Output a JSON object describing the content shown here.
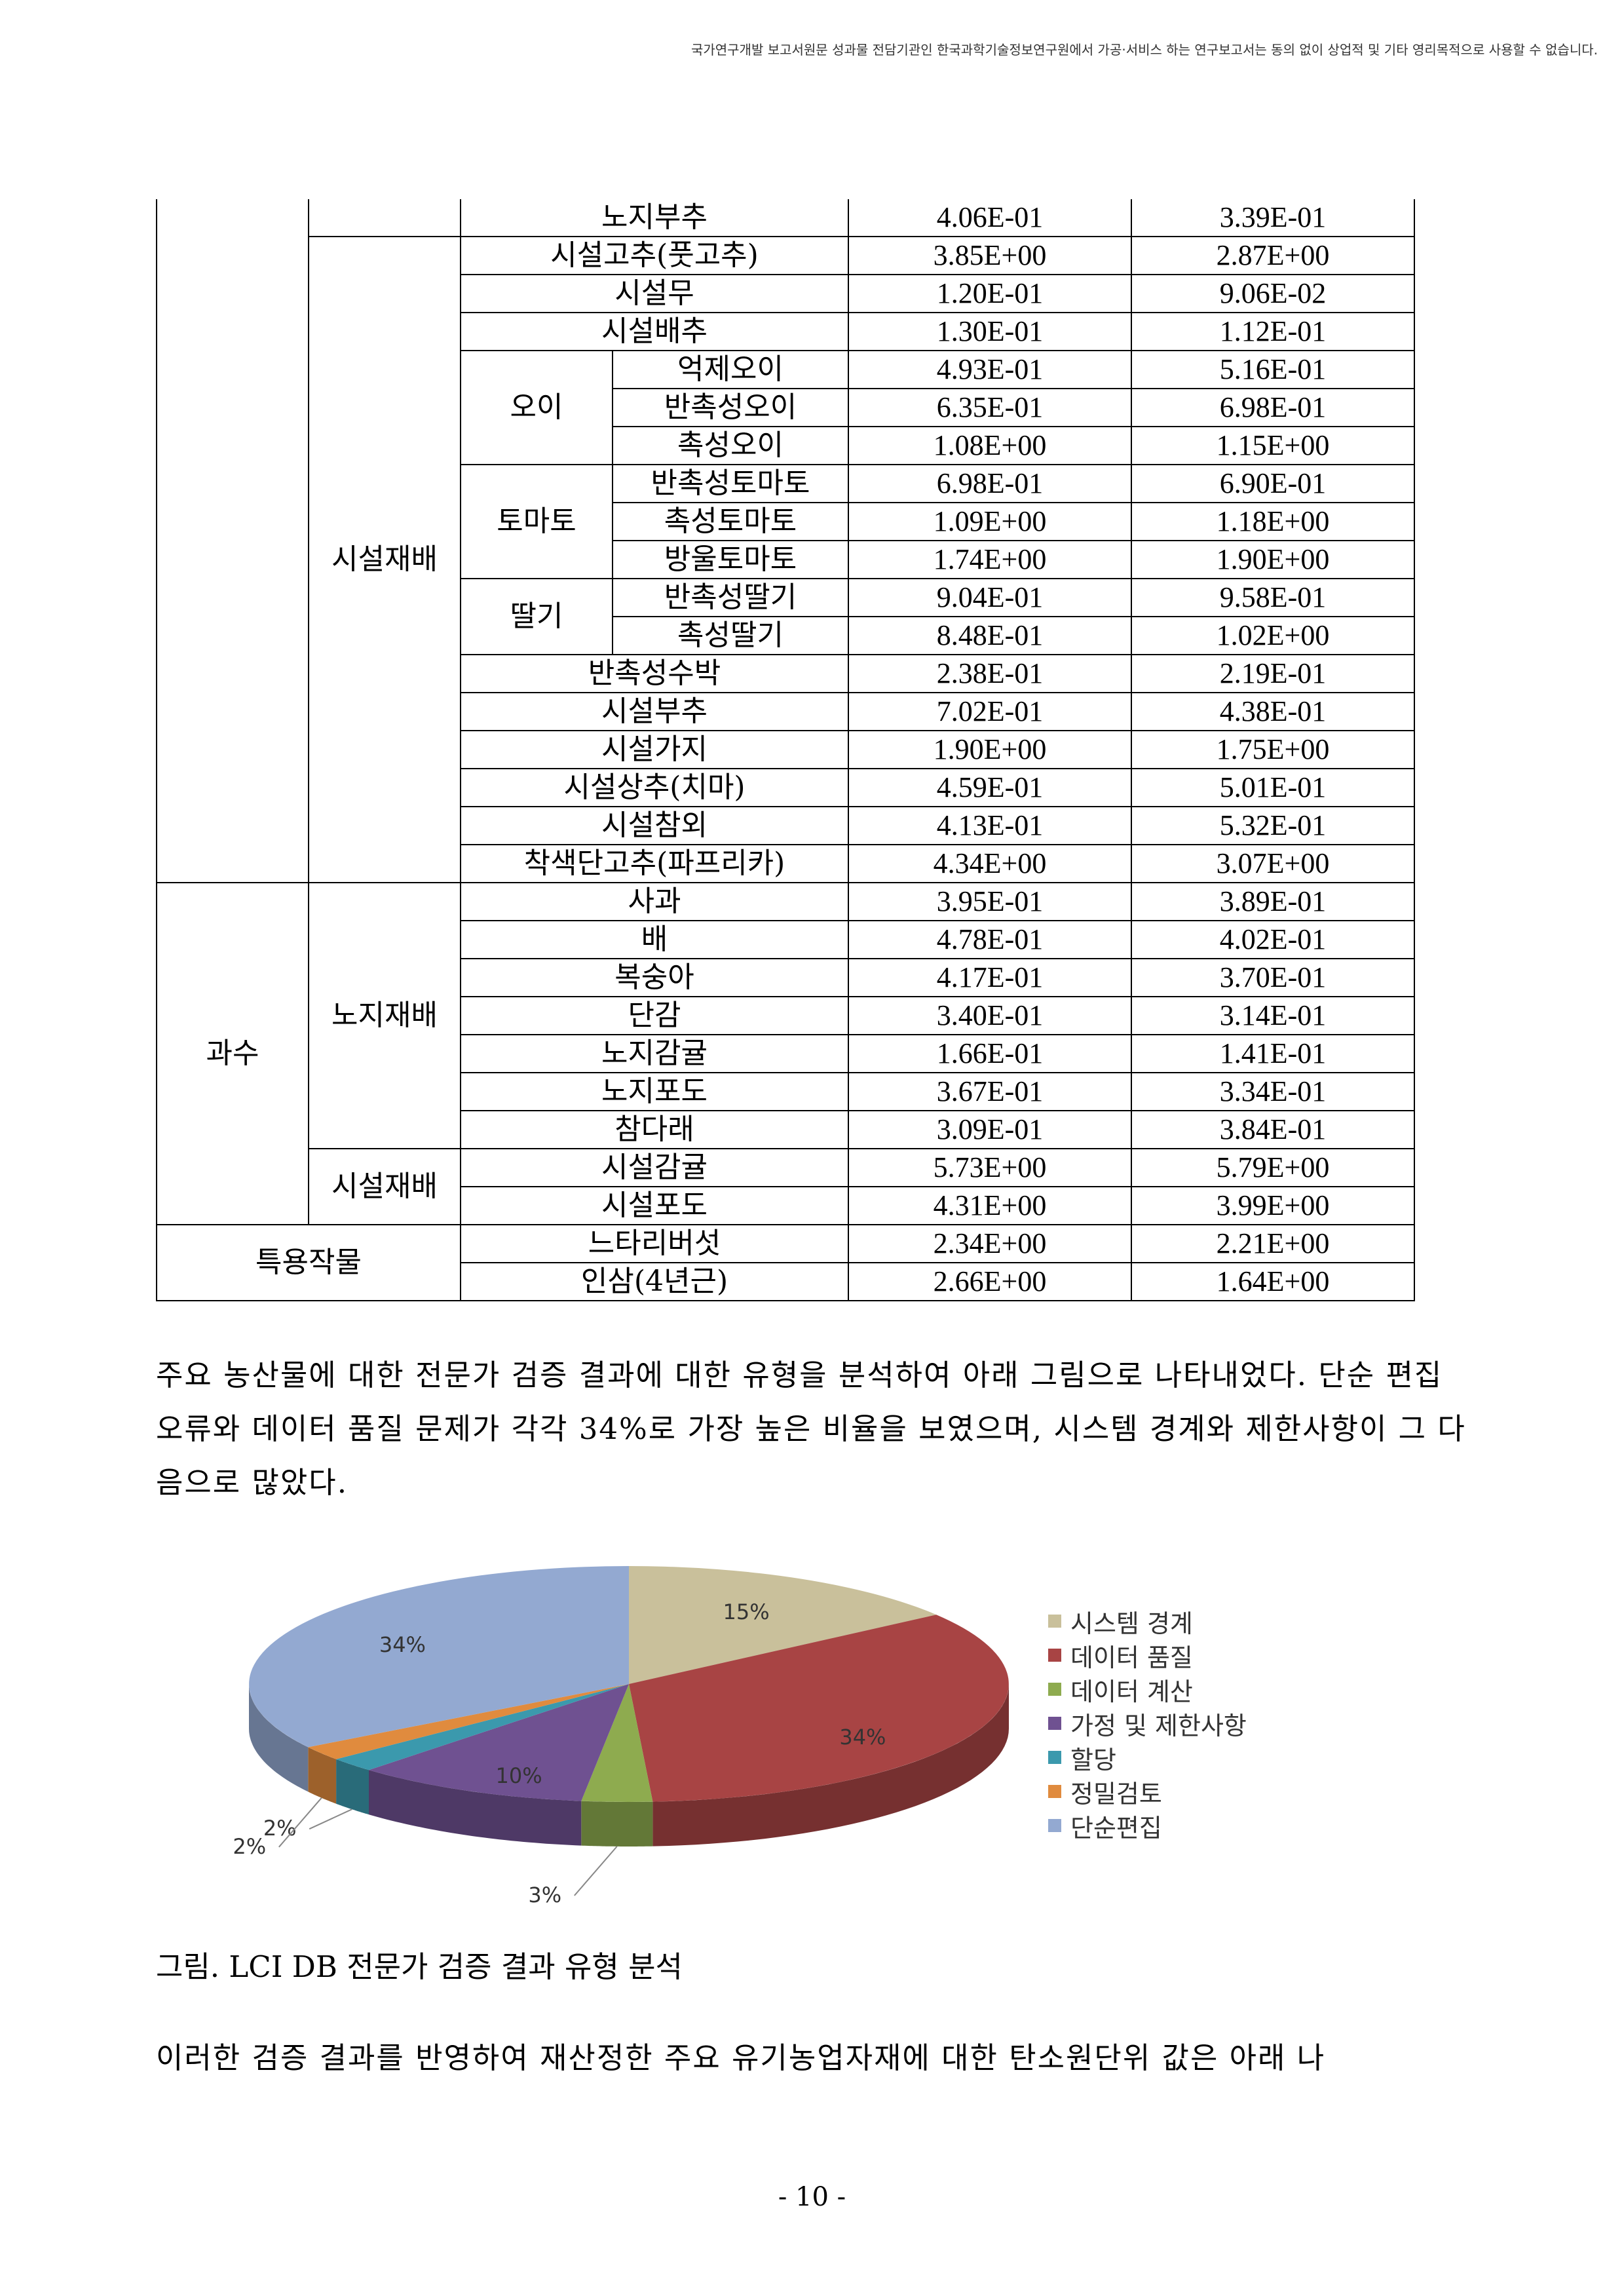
{
  "header_notice": "국가연구개발 보고서원문 성과물 전담기관인 한국과학기술정보연구원에서 가공·서비스 하는 연구보고서는 동의 없이 상업적 및 기타 영리목적으로 사용할 수 없습니다.",
  "table": {
    "rows": [
      {
        "name": "노지부추",
        "v1": "4.06E-01",
        "v2": "3.39E-01"
      },
      {
        "name": "시설고추(풋고추)",
        "v1": "3.85E+00",
        "v2": "2.87E+00"
      },
      {
        "name": "시설무",
        "v1": "1.20E-01",
        "v2": "9.06E-02"
      },
      {
        "name": "시설배추",
        "v1": "1.30E-01",
        "v2": "1.12E-01"
      },
      {
        "name": "억제오이",
        "v1": "4.93E-01",
        "v2": "5.16E-01"
      },
      {
        "name": "반촉성오이",
        "v1": "6.35E-01",
        "v2": "6.98E-01"
      },
      {
        "name": "촉성오이",
        "v1": "1.08E+00",
        "v2": "1.15E+00"
      },
      {
        "name": "반촉성토마토",
        "v1": "6.98E-01",
        "v2": "6.90E-01"
      },
      {
        "name": "촉성토마토",
        "v1": "1.09E+00",
        "v2": "1.18E+00"
      },
      {
        "name": "방울토마토",
        "v1": "1.74E+00",
        "v2": "1.90E+00"
      },
      {
        "name": "반촉성딸기",
        "v1": "9.04E-01",
        "v2": "9.58E-01"
      },
      {
        "name": "촉성딸기",
        "v1": "8.48E-01",
        "v2": "1.02E+00"
      },
      {
        "name": "반촉성수박",
        "v1": "2.38E-01",
        "v2": "2.19E-01"
      },
      {
        "name": "시설부추",
        "v1": "7.02E-01",
        "v2": "4.38E-01"
      },
      {
        "name": "시설가지",
        "v1": "1.90E+00",
        "v2": "1.75E+00"
      },
      {
        "name": "시설상추(치마)",
        "v1": "4.59E-01",
        "v2": "5.01E-01"
      },
      {
        "name": "시설참외",
        "v1": "4.13E-01",
        "v2": "5.32E-01"
      },
      {
        "name": "착색단고추(파프리카)",
        "v1": "4.34E+00",
        "v2": "3.07E+00"
      },
      {
        "name": "사과",
        "v1": "3.95E-01",
        "v2": "3.89E-01"
      },
      {
        "name": "배",
        "v1": "4.78E-01",
        "v2": "4.02E-01"
      },
      {
        "name": "복숭아",
        "v1": "4.17E-01",
        "v2": "3.70E-01"
      },
      {
        "name": "단감",
        "v1": "3.40E-01",
        "v2": "3.14E-01"
      },
      {
        "name": "노지감귤",
        "v1": "1.66E-01",
        "v2": "1.41E-01"
      },
      {
        "name": "노지포도",
        "v1": "3.67E-01",
        "v2": "3.34E-01"
      },
      {
        "name": "참다래",
        "v1": "3.09E-01",
        "v2": "3.84E-01"
      },
      {
        "name": "시설감귤",
        "v1": "5.73E+00",
        "v2": "5.79E+00"
      },
      {
        "name": "시설포도",
        "v1": "4.31E+00",
        "v2": "3.99E+00"
      },
      {
        "name": "느타리버섯",
        "v1": "2.34E+00",
        "v2": "2.21E+00"
      },
      {
        "name": "인삼(4년근)",
        "v1": "2.66E+00",
        "v2": "1.64E+00"
      }
    ],
    "groups": {
      "cucumber": "오이",
      "tomato": "토마토",
      "strawberry": "딸기",
      "greenhouse_veg": "시설재배",
      "fruit": "과수",
      "fruit_open": "노지재배",
      "fruit_greenhouse": "시설재배",
      "special": "특용작물"
    }
  },
  "paragraph1": "주요 농산물에 대한 전문가 검증 결과에 대한 유형을 분석하여 아래 그림으로 나타내었다. 단순 편집 오류와 데이터 품질 문제가 각각 34%로 가장 높은 비율을 보였으며, 시스템 경계와 제한사항이 그 다음으로 많았다.",
  "caption": "그림. LCI DB 전문가 검증 결과 유형 분석",
  "paragraph2": "이러한 검증 결과를 반영하여 재산정한 주요 유기농업자재에 대한 탄소원단위 값은 아래 나",
  "page_number": "- 10 -",
  "chart_data": {
    "type": "pie",
    "categories": [
      "시스템 경계",
      "데이터 품질",
      "데이터 계산",
      "가정 및 제한사항",
      "할당",
      "정밀검토",
      "단순편집"
    ],
    "values": [
      15,
      34,
      3,
      10,
      2,
      2,
      34
    ],
    "labels": [
      "15%",
      "34%",
      "3%",
      "10%",
      "2%",
      "2%",
      "34%"
    ],
    "colors": [
      "#c9c09b",
      "#a84444",
      "#8eab4f",
      "#6f5191",
      "#3b99ad",
      "#e08b3e",
      "#93a9d1"
    ],
    "legend_position": "right",
    "3d": true
  }
}
